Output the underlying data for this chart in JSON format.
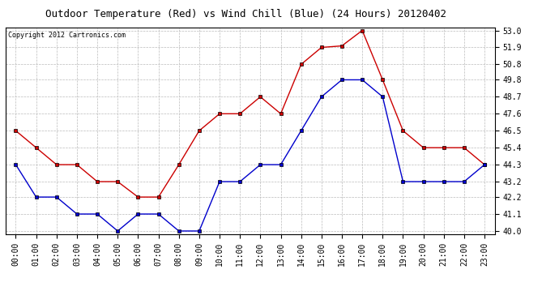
{
  "title": "Outdoor Temperature (Red) vs Wind Chill (Blue) (24 Hours) 20120402",
  "copyright": "Copyright 2012 Cartronics.com",
  "x_labels": [
    "00:00",
    "01:00",
    "02:00",
    "03:00",
    "04:00",
    "05:00",
    "06:00",
    "07:00",
    "08:00",
    "09:00",
    "10:00",
    "11:00",
    "12:00",
    "13:00",
    "14:00",
    "15:00",
    "16:00",
    "17:00",
    "18:00",
    "19:00",
    "20:00",
    "21:00",
    "22:00",
    "23:00"
  ],
  "red_data": [
    46.5,
    45.4,
    44.3,
    44.3,
    43.2,
    43.2,
    42.2,
    42.2,
    44.3,
    46.5,
    47.6,
    47.6,
    48.7,
    47.6,
    50.8,
    51.9,
    52.0,
    53.0,
    49.8,
    46.5,
    45.4,
    45.4,
    45.4,
    44.3
  ],
  "blue_data": [
    44.3,
    42.2,
    42.2,
    41.1,
    41.1,
    40.0,
    41.1,
    41.1,
    40.0,
    40.0,
    43.2,
    43.2,
    44.3,
    44.3,
    46.5,
    48.7,
    49.8,
    49.8,
    48.7,
    43.2,
    43.2,
    43.2,
    43.2,
    44.3
  ],
  "ylim_min": 40.0,
  "ylim_max": 53.0,
  "yticks": [
    40.0,
    41.1,
    42.2,
    43.2,
    44.3,
    45.4,
    46.5,
    47.6,
    48.7,
    49.8,
    50.8,
    51.9,
    53.0
  ],
  "red_color": "#cc0000",
  "blue_color": "#0000cc",
  "bg_color": "#ffffff",
  "grid_color": "#bbbbbb",
  "title_fontsize": 9,
  "copyright_fontsize": 6,
  "tick_fontsize": 7,
  "marker_size": 3
}
